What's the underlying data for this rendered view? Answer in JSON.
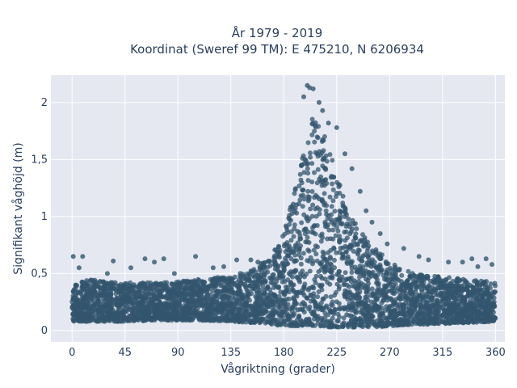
{
  "chart_data": {
    "type": "scatter",
    "title": "År 1979 - 2019",
    "subtitle": "Koordinat (Sweref 99 TM): E 475210, N 6206934",
    "xlabel": "Vågriktning (grader)",
    "ylabel": "Signifikant våghöjd (m)",
    "xlim": [
      -18,
      368
    ],
    "ylim": [
      -0.1,
      2.24
    ],
    "xticks": [
      0,
      45,
      90,
      135,
      180,
      225,
      270,
      315,
      360
    ],
    "xtick_labels": [
      "0",
      "45",
      "90",
      "135",
      "180",
      "225",
      "270",
      "315",
      "360"
    ],
    "yticks": [
      0,
      0.5,
      1,
      1.5,
      2
    ],
    "ytick_labels": [
      "0",
      "0,5",
      "1",
      "1,5",
      "2"
    ],
    "grid": true,
    "legend": "none",
    "marker_color": "#33566e",
    "plot_background": "#e5e8f1",
    "envelope_note_x": [
      0,
      20,
      45,
      70,
      90,
      110,
      135,
      150,
      165,
      180,
      190,
      200,
      205,
      210,
      220,
      230,
      240,
      255,
      270,
      290,
      315,
      340,
      360
    ],
    "envelope_upper": [
      0.42,
      0.45,
      0.42,
      0.42,
      0.43,
      0.45,
      0.48,
      0.52,
      0.62,
      0.85,
      1.25,
      1.7,
      1.9,
      1.85,
      1.55,
      1.2,
      0.95,
      0.75,
      0.6,
      0.5,
      0.47,
      0.45,
      0.42
    ],
    "envelope_lower": [
      0.08,
      0.08,
      0.08,
      0.09,
      0.09,
      0.09,
      0.08,
      0.07,
      0.06,
      0.04,
      0.04,
      0.04,
      0.04,
      0.04,
      0.03,
      0.03,
      0.03,
      0.03,
      0.04,
      0.05,
      0.06,
      0.07,
      0.08
    ],
    "outliers": [
      [
        1,
        0.65
      ],
      [
        9,
        0.65
      ],
      [
        6,
        0.55
      ],
      [
        30,
        0.5
      ],
      [
        35,
        0.61
      ],
      [
        50,
        0.55
      ],
      [
        62,
        0.63
      ],
      [
        70,
        0.6
      ],
      [
        78,
        0.63
      ],
      [
        87,
        0.5
      ],
      [
        105,
        0.65
      ],
      [
        120,
        0.55
      ],
      [
        129,
        0.56
      ],
      [
        140,
        0.62
      ],
      [
        152,
        0.62
      ],
      [
        158,
        0.6
      ],
      [
        200,
        2.15
      ],
      [
        202,
        2.13
      ],
      [
        205,
        2.12
      ],
      [
        197,
        2.05
      ],
      [
        210,
        2.0
      ],
      [
        213,
        1.93
      ],
      [
        218,
        1.82
      ],
      [
        225,
        1.78
      ],
      [
        232,
        1.55
      ],
      [
        238,
        1.42
      ],
      [
        245,
        1.22
      ],
      [
        250,
        1.05
      ],
      [
        255,
        0.95
      ],
      [
        262,
        0.85
      ],
      [
        268,
        0.76
      ],
      [
        282,
        0.72
      ],
      [
        295,
        0.65
      ],
      [
        303,
        0.62
      ],
      [
        320,
        0.6
      ],
      [
        332,
        0.6
      ],
      [
        340,
        0.63
      ],
      [
        345,
        0.56
      ],
      [
        352,
        0.63
      ],
      [
        357,
        0.58
      ]
    ]
  }
}
